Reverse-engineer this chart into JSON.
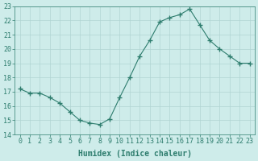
{
  "x": [
    0,
    1,
    2,
    3,
    4,
    5,
    6,
    7,
    8,
    9,
    10,
    11,
    12,
    13,
    14,
    15,
    16,
    17,
    18,
    19,
    20,
    21,
    22,
    23
  ],
  "y": [
    17.2,
    16.9,
    16.9,
    16.6,
    16.2,
    15.6,
    15.0,
    14.8,
    14.7,
    15.1,
    16.6,
    18.0,
    19.5,
    20.6,
    21.9,
    22.2,
    22.4,
    22.8,
    21.7,
    20.6,
    20.0,
    19.5,
    19.0,
    19.0
  ],
  "line_color": "#2e7d6e",
  "marker": "+",
  "marker_size": 4,
  "bg_color": "#ceecea",
  "grid_color": "#b0d5d2",
  "xlabel": "Humidex (Indice chaleur)",
  "ylim": [
    14,
    23
  ],
  "xlim": [
    -0.5,
    23.5
  ],
  "yticks": [
    14,
    15,
    16,
    17,
    18,
    19,
    20,
    21,
    22,
    23
  ],
  "xticks": [
    0,
    1,
    2,
    3,
    4,
    5,
    6,
    7,
    8,
    9,
    10,
    11,
    12,
    13,
    14,
    15,
    16,
    17,
    18,
    19,
    20,
    21,
    22,
    23
  ],
  "tick_color": "#2e7d6e",
  "xlabel_fontsize": 7,
  "tick_fontsize": 6
}
